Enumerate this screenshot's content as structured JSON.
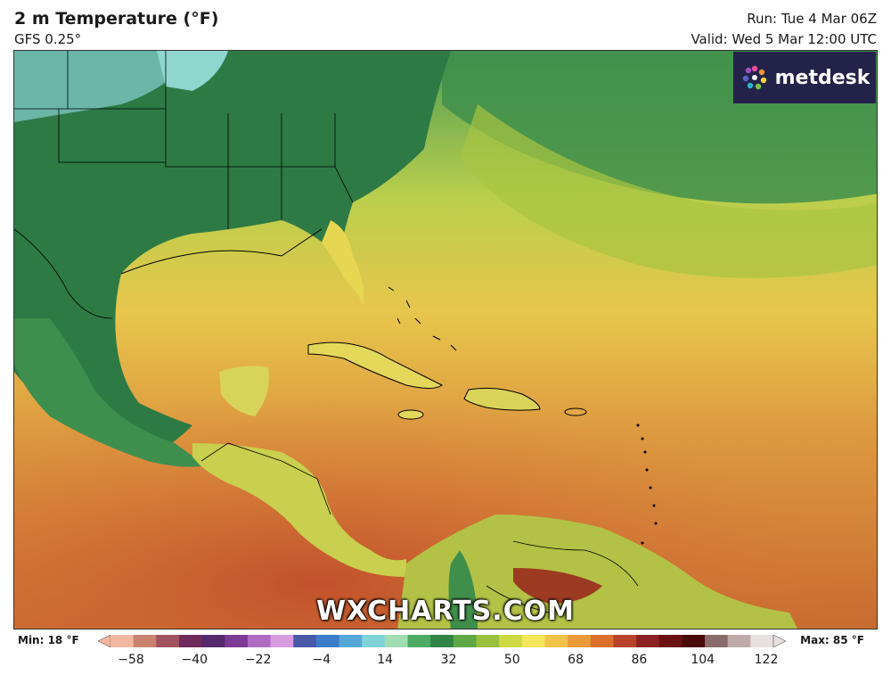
{
  "header": {
    "title": "2 m Temperature (°F)",
    "model": "GFS 0.25°",
    "run": "Run: Tue 4 Mar 06Z",
    "valid": "Valid: Wed 5 Mar 12:00 UTC"
  },
  "brand": {
    "name": "metdesk",
    "icon": "metdesk-flower-icon"
  },
  "watermark": "WXCHARTS.COM",
  "legend": {
    "min": "Min: 18 °F",
    "max": "Max: 85 °F",
    "ticks": [
      "−58",
      "−40",
      "−22",
      "−4",
      "14",
      "32",
      "50",
      "68",
      "86",
      "104",
      "122"
    ],
    "colors": [
      "#f2b7a0",
      "#c9826e",
      "#a3525f",
      "#6f2a5c",
      "#55296b",
      "#7c3a94",
      "#b06cc0",
      "#d89be0",
      "#4a58a8",
      "#3b7cc9",
      "#54a7d6",
      "#7fd3d7",
      "#9fdcb0",
      "#4caa62",
      "#2f8446",
      "#5fa845",
      "#99c13e",
      "#cdd943",
      "#f3e55c",
      "#f0c24a",
      "#e89a38",
      "#d9702c",
      "#b8432a",
      "#8d2222",
      "#6a1212",
      "#4a0b0b",
      "#8a6b6b",
      "#bfaaaa",
      "#e8e0e0"
    ]
  }
}
